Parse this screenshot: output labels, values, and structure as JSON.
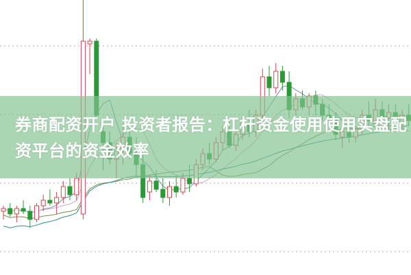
{
  "title": "券商配资开户 投资者报告：杠杆资金使用使用实盘配资平台的资金效率",
  "colors": {
    "up": "#d9434b",
    "down": "#2a9a38",
    "banner": "#8cc79a",
    "grid": "#aaaaaa",
    "ma5": "#6f8fa8",
    "ma10": "#d9a0c8",
    "ma20": "#7a8f4a",
    "ma60": "#2e8f8a"
  },
  "chart_data": {
    "type": "candlestick",
    "ylim": [
      0,
      100
    ],
    "grid": true,
    "ohlc": [
      [
        23,
        25,
        20,
        24
      ],
      [
        24,
        26,
        21,
        22
      ],
      [
        22,
        25,
        19,
        24
      ],
      [
        24,
        27,
        22,
        23
      ],
      [
        23,
        25,
        17,
        20
      ],
      [
        20,
        26,
        19,
        25
      ],
      [
        25,
        29,
        23,
        27
      ],
      [
        27,
        31,
        25,
        26
      ],
      [
        26,
        30,
        22,
        28
      ],
      [
        28,
        34,
        26,
        32
      ],
      [
        32,
        35,
        27,
        29
      ],
      [
        29,
        37,
        27,
        35
      ],
      [
        22,
        100,
        20,
        85
      ],
      [
        84,
        86,
        73,
        85
      ],
      [
        85,
        86,
        57,
        58
      ],
      [
        52,
        54,
        38,
        48
      ],
      [
        48,
        52,
        40,
        42
      ],
      [
        42,
        48,
        35,
        45
      ],
      [
        45,
        55,
        40,
        50
      ],
      [
        50,
        56,
        42,
        44
      ],
      [
        44,
        50,
        36,
        40
      ],
      [
        40,
        46,
        26,
        28
      ],
      [
        30,
        36,
        27,
        34
      ],
      [
        34,
        38,
        30,
        31
      ],
      [
        31,
        35,
        26,
        28
      ],
      [
        28,
        34,
        25,
        32
      ],
      [
        32,
        36,
        28,
        30
      ],
      [
        30,
        37,
        29,
        35
      ],
      [
        35,
        40,
        30,
        33
      ],
      [
        33,
        42,
        32,
        40
      ],
      [
        40,
        46,
        38,
        44
      ],
      [
        44,
        48,
        40,
        42
      ],
      [
        42,
        50,
        41,
        48
      ],
      [
        48,
        54,
        45,
        52
      ],
      [
        52,
        56,
        46,
        47
      ],
      [
        47,
        53,
        45,
        51
      ],
      [
        51,
        57,
        49,
        55
      ],
      [
        55,
        60,
        50,
        52
      ],
      [
        52,
        60,
        50,
        58
      ],
      [
        58,
        75,
        56,
        72
      ],
      [
        72,
        76,
        65,
        68
      ],
      [
        68,
        77,
        66,
        74
      ],
      [
        74,
        76,
        67,
        70
      ],
      [
        70,
        74,
        57,
        60
      ],
      [
        60,
        66,
        58,
        64
      ],
      [
        64,
        67,
        60,
        61
      ],
      [
        61,
        66,
        58,
        65
      ],
      [
        65,
        67,
        58,
        62
      ],
      [
        62,
        64,
        56,
        58
      ],
      [
        58,
        62,
        55,
        57
      ],
      [
        57,
        59,
        49,
        51
      ],
      [
        50,
        54,
        46,
        52
      ],
      [
        52,
        55,
        48,
        50
      ],
      [
        50,
        54,
        48,
        53
      ],
      [
        53,
        60,
        51,
        58
      ],
      [
        58,
        63,
        54,
        56
      ],
      [
        56,
        64,
        54,
        60
      ],
      [
        60,
        63,
        55,
        57
      ],
      [
        57,
        62,
        52,
        59
      ],
      [
        59,
        62,
        53,
        55
      ],
      [
        55,
        60,
        53,
        58
      ],
      [
        58,
        62,
        54,
        56
      ]
    ],
    "moving_averages": [
      5,
      10,
      20,
      60
    ]
  }
}
